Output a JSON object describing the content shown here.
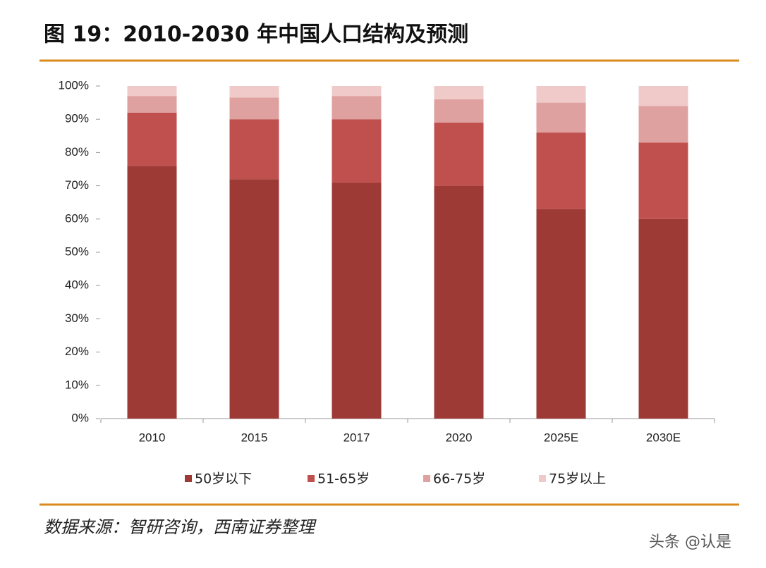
{
  "chart_data": {
    "type": "stacked-bar",
    "title": "图 19：2010-2030 年中国人口结构及预测",
    "source": "数据来源：智研咨询，西南证券整理",
    "watermark": "头条 @认是",
    "categories": [
      "2010",
      "2015",
      "2017",
      "2020",
      "2025E",
      "2030E"
    ],
    "series": [
      {
        "name": "50岁以下",
        "color": "#9e3a36",
        "values": [
          76,
          72,
          71,
          70,
          63,
          60
        ]
      },
      {
        "name": "51-65岁",
        "color": "#c0504d",
        "values": [
          16,
          18,
          19,
          19,
          23,
          23
        ]
      },
      {
        "name": "66-75岁",
        "color": "#dfa19f",
        "values": [
          5,
          6.5,
          7,
          7,
          9,
          11
        ]
      },
      {
        "name": "75岁以上",
        "color": "#efcac8",
        "values": [
          3,
          3.5,
          3,
          4,
          5,
          6
        ]
      }
    ],
    "ylim": [
      0,
      100
    ],
    "yticks": [
      {
        "value": 0,
        "label": "0%"
      },
      {
        "value": 10,
        "label": "10%"
      },
      {
        "value": 20,
        "label": "20%"
      },
      {
        "value": 30,
        "label": "30%"
      },
      {
        "value": 40,
        "label": "40%"
      },
      {
        "value": 50,
        "label": "50%"
      },
      {
        "value": 60,
        "label": "60%"
      },
      {
        "value": 70,
        "label": "70%"
      },
      {
        "value": 80,
        "label": "80%"
      },
      {
        "value": 90,
        "label": "90%"
      },
      {
        "value": 100,
        "label": "100%"
      }
    ],
    "grid": false
  }
}
